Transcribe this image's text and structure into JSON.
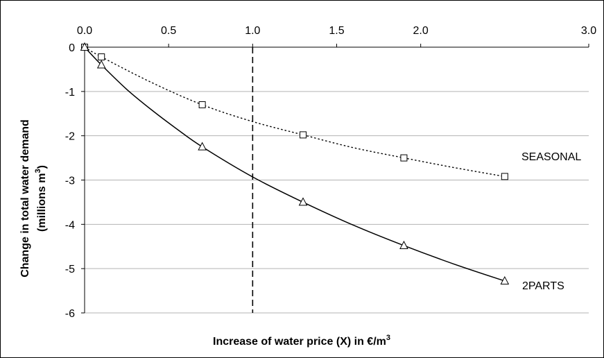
{
  "chart_data": {
    "type": "line",
    "xlabel": "Increase of water price (X) in €/m³",
    "xlabel_main": "Increase of water price (X) in €/m",
    "xlabel_sup": "3",
    "ylabel_line1": "Change in total water demand",
    "ylabel_line2_main": "(millions m",
    "ylabel_line2_sup": "3",
    "ylabel_line2_end": ")",
    "x_axis_position": "top",
    "xlim": [
      0,
      3.0
    ],
    "ylim": [
      -6,
      0
    ],
    "x_ticks": [
      0.0,
      0.5,
      1.0,
      1.5,
      2.0,
      3.0
    ],
    "x_tick_labels": [
      "0.0",
      "0.5",
      "1.0",
      "1.5",
      "2.0",
      "3.0"
    ],
    "y_ticks": [
      0,
      -1,
      -2,
      -3,
      -4,
      -5,
      -6
    ],
    "y_tick_labels": [
      "0",
      "-1",
      "-2",
      "-3",
      "-4",
      "-5",
      "-6"
    ],
    "grid": "horizontal",
    "reference_line": {
      "x": 1.0,
      "style": "dashed"
    },
    "series": [
      {
        "name": "SEASONAL",
        "marker": "square",
        "line_style": "dotted",
        "x": [
          0.0,
          0.1,
          0.7,
          1.3,
          1.9,
          2.5
        ],
        "y": [
          0.0,
          -0.22,
          -1.3,
          -1.98,
          -2.5,
          -2.92
        ],
        "curve_x": [
          0.0,
          0.1,
          0.4,
          0.7,
          1.0,
          1.3,
          1.6,
          1.9,
          2.2,
          2.5
        ],
        "curve_y": [
          0.0,
          -0.22,
          -0.8,
          -1.3,
          -1.68,
          -1.98,
          -2.27,
          -2.5,
          -2.72,
          -2.92
        ]
      },
      {
        "name": "2PARTS",
        "marker": "triangle",
        "line_style": "solid",
        "x": [
          0.0,
          0.1,
          0.7,
          1.3,
          1.9,
          2.5
        ],
        "y": [
          0.0,
          -0.4,
          -2.25,
          -3.5,
          -4.48,
          -5.28
        ],
        "curve_x": [
          0.0,
          0.1,
          0.25,
          0.4,
          0.55,
          0.7,
          1.0,
          1.3,
          1.6,
          1.9,
          2.2,
          2.5
        ],
        "curve_y": [
          0.0,
          -0.4,
          -0.95,
          -1.42,
          -1.85,
          -2.25,
          -2.93,
          -3.5,
          -4.02,
          -4.48,
          -4.9,
          -5.28
        ]
      }
    ]
  }
}
